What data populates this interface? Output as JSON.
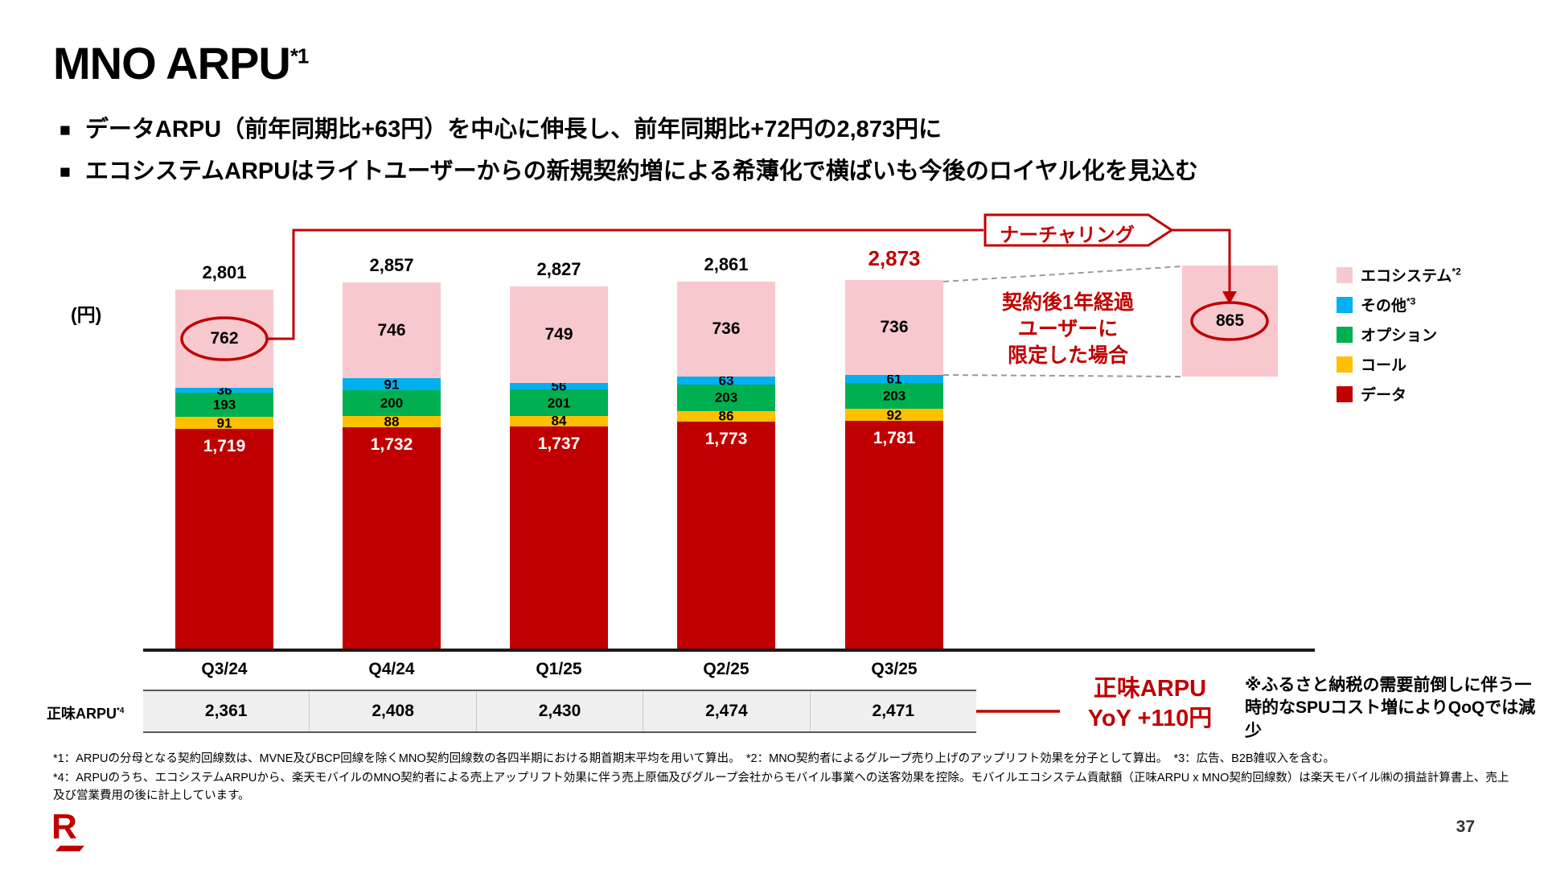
{
  "page": {
    "title": "MNO ARPU",
    "title_sup": "*1",
    "page_number": "37",
    "logo_letter": "R"
  },
  "bullets": [
    {
      "marker": "■",
      "text": "データARPU（前年同期比+63円）を中心に伸長し、前年同期比+72円の2,873円に"
    },
    {
      "marker": "■",
      "text": "エコシステムARPUはライトユーザーからの新規契約増による希薄化で横ばいも今後のロイヤル化を見込む"
    }
  ],
  "chart_data": {
    "type": "bar",
    "stacked": true,
    "unit_label": "(円)",
    "categories": [
      "Q3/24",
      "Q4/24",
      "Q1/25",
      "Q2/25",
      "Q3/25"
    ],
    "totals": [
      "2,801",
      "2,857",
      "2,827",
      "2,861",
      "2,873"
    ],
    "series": [
      {
        "key": "data",
        "name": "データ",
        "color": "#C00000",
        "values": [
          1719,
          1732,
          1737,
          1773,
          1781
        ]
      },
      {
        "key": "call",
        "name": "コール",
        "color": "#FFC000",
        "values": [
          91,
          88,
          84,
          86,
          92
        ]
      },
      {
        "key": "option",
        "name": "オプション",
        "color": "#00B050",
        "values": [
          193,
          200,
          201,
          203,
          203
        ]
      },
      {
        "key": "other",
        "name": "その他",
        "color": "#00B0F0",
        "values": [
          36,
          91,
          56,
          63,
          61
        ]
      },
      {
        "key": "ecosystem",
        "name": "エコシステム",
        "color": "#F7C9CE",
        "values": [
          762,
          746,
          749,
          736,
          736
        ]
      }
    ],
    "legend": [
      {
        "key": "ecosystem",
        "label": "エコシステム",
        "sup": "*2",
        "color": "#F7C9CE"
      },
      {
        "key": "other",
        "label": "その他",
        "sup": "*3",
        "color": "#00B0F0"
      },
      {
        "key": "option",
        "label": "オプション",
        "sup": "",
        "color": "#00B050"
      },
      {
        "key": "call",
        "label": "コール",
        "sup": "",
        "color": "#FFC000"
      },
      {
        "key": "data",
        "label": "データ",
        "sup": "",
        "color": "#C00000"
      }
    ],
    "nurturing_bar": {
      "label": "865",
      "value": 865
    }
  },
  "annotations": {
    "nurturing_banner": "ナーチャリング",
    "limited_note": [
      "契約後1年経過",
      "ユーザーに",
      "限定した場合"
    ],
    "net_arpu_callout": [
      "正味ARPU",
      "YoY +110円"
    ],
    "qoq_note": "※ふるさと納税の需要前倒しに伴う一時的なSPUコスト増によりQoQでは減少"
  },
  "table": {
    "row_label": "正味ARPU",
    "row_label_sup": "*4",
    "values": [
      "2,361",
      "2,408",
      "2,430",
      "2,474",
      "2,471"
    ]
  },
  "footnotes": [
    "*1：ARPUの分母となる契約回線数は、MVNE及びBCP回線を除くMNO契約回線数の各四半期における期首期末平均を用いて算出。　*2：MNO契約者によるグループ売り上げのアップリフト効果を分子として算出。　*3：広告、B2B雑収入を含む。",
    "*4：ARPUのうち、エコシステムARPUから、楽天モバイルのMNO契約者による売上アップリフト効果に伴う売上原価及びグループ会社からモバイル事業への送客効果を控除。モバイルエコシステム貢献額（正味ARPU x MNO契約回線数）は楽天モバイル㈱の損益計算書上、売上及び営業費用の後に計上しています。"
  ],
  "colors": {
    "accent_red": "#C00000"
  }
}
